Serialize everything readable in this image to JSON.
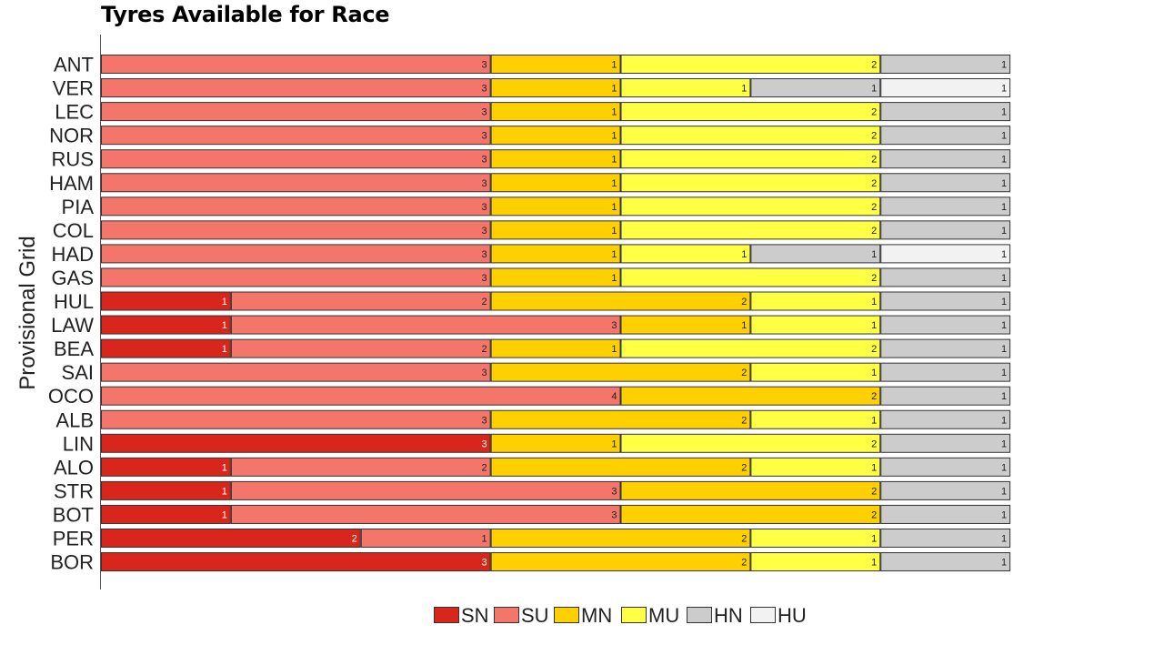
{
  "chart_data": {
    "type": "bar",
    "orientation": "horizontal",
    "stacked": true,
    "title": "Tyres Available for Race",
    "ylabel": "Provisional Grid",
    "xlabel": "",
    "xlim": [
      0,
      8
    ],
    "grid": false,
    "legend_position": "bottom",
    "categories": [
      "ANT",
      "VER",
      "LEC",
      "NOR",
      "RUS",
      "HAM",
      "PIA",
      "COL",
      "HAD",
      "GAS",
      "HUL",
      "LAW",
      "BEA",
      "SAI",
      "OCO",
      "ALB",
      "LIN",
      "ALO",
      "STR",
      "BOT",
      "PER",
      "BOR"
    ],
    "series": [
      {
        "name": "SN",
        "color": "#d9261c",
        "values": [
          0,
          0,
          0,
          0,
          0,
          0,
          0,
          0,
          0,
          0,
          1,
          1,
          1,
          0,
          0,
          0,
          3,
          1,
          1,
          1,
          2,
          3
        ]
      },
      {
        "name": "SU",
        "color": "#f4766a",
        "values": [
          3,
          3,
          3,
          3,
          3,
          3,
          3,
          3,
          3,
          3,
          2,
          3,
          2,
          3,
          4,
          3,
          0,
          2,
          3,
          3,
          1,
          0
        ]
      },
      {
        "name": "MN",
        "color": "#ffd000",
        "values": [
          1,
          1,
          1,
          1,
          1,
          1,
          1,
          1,
          1,
          1,
          2,
          1,
          1,
          2,
          2,
          2,
          1,
          2,
          2,
          2,
          2,
          2
        ]
      },
      {
        "name": "MU",
        "color": "#ffff44",
        "values": [
          2,
          1,
          2,
          2,
          2,
          2,
          2,
          2,
          1,
          2,
          1,
          1,
          2,
          1,
          0,
          1,
          2,
          1,
          0,
          0,
          1,
          1
        ]
      },
      {
        "name": "HN",
        "color": "#cccccc",
        "values": [
          1,
          1,
          1,
          1,
          1,
          1,
          1,
          1,
          1,
          1,
          1,
          1,
          1,
          1,
          1,
          1,
          1,
          1,
          1,
          1,
          1,
          1
        ]
      },
      {
        "name": "HU",
        "color": "#f2f2f2",
        "values": [
          0,
          1,
          0,
          0,
          0,
          0,
          0,
          0,
          1,
          0,
          0,
          0,
          0,
          0,
          0,
          0,
          0,
          0,
          0,
          0,
          0,
          0
        ]
      }
    ]
  }
}
